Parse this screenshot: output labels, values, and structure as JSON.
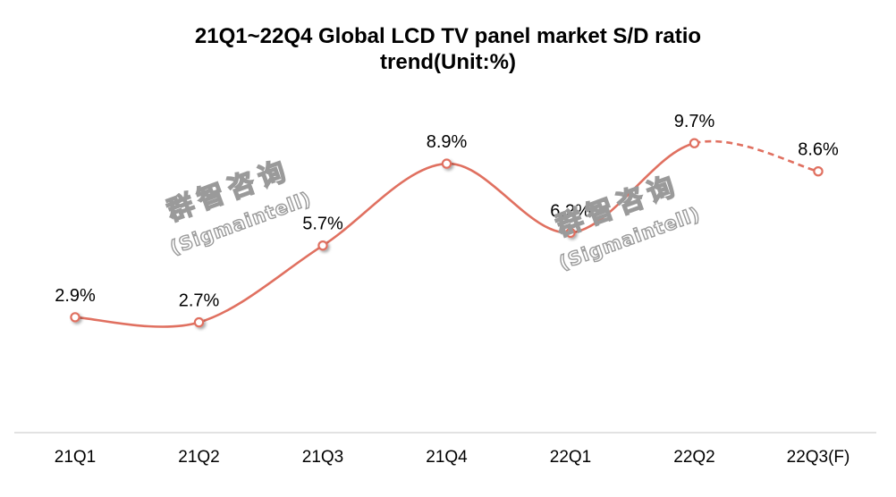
{
  "chart_data": {
    "type": "line",
    "title_line1": "21Q1~22Q4 Global LCD TV panel market S/D ratio",
    "title_line2": "trend(Unit:%)",
    "categories": [
      "21Q1",
      "21Q2",
      "21Q3",
      "21Q4",
      "22Q1",
      "22Q2",
      "22Q3(F)"
    ],
    "series": [
      {
        "values": [
          2.9,
          2.7,
          5.7,
          8.9,
          6.2,
          9.7,
          8.6
        ],
        "labels": [
          "2.9%",
          "2.7%",
          "5.7%",
          "8.9%",
          "6.2%",
          "9.7%",
          "8.6%"
        ],
        "forecast_from_index": 5
      }
    ],
    "smooth": true,
    "grid": false,
    "legend": "none",
    "colors": {
      "line": "#e07060",
      "marker_fill": "#ffffff",
      "axis": "#d0d0d0"
    }
  },
  "watermark": {
    "cn": "群智咨询",
    "en": "(Sigmaintell)"
  }
}
